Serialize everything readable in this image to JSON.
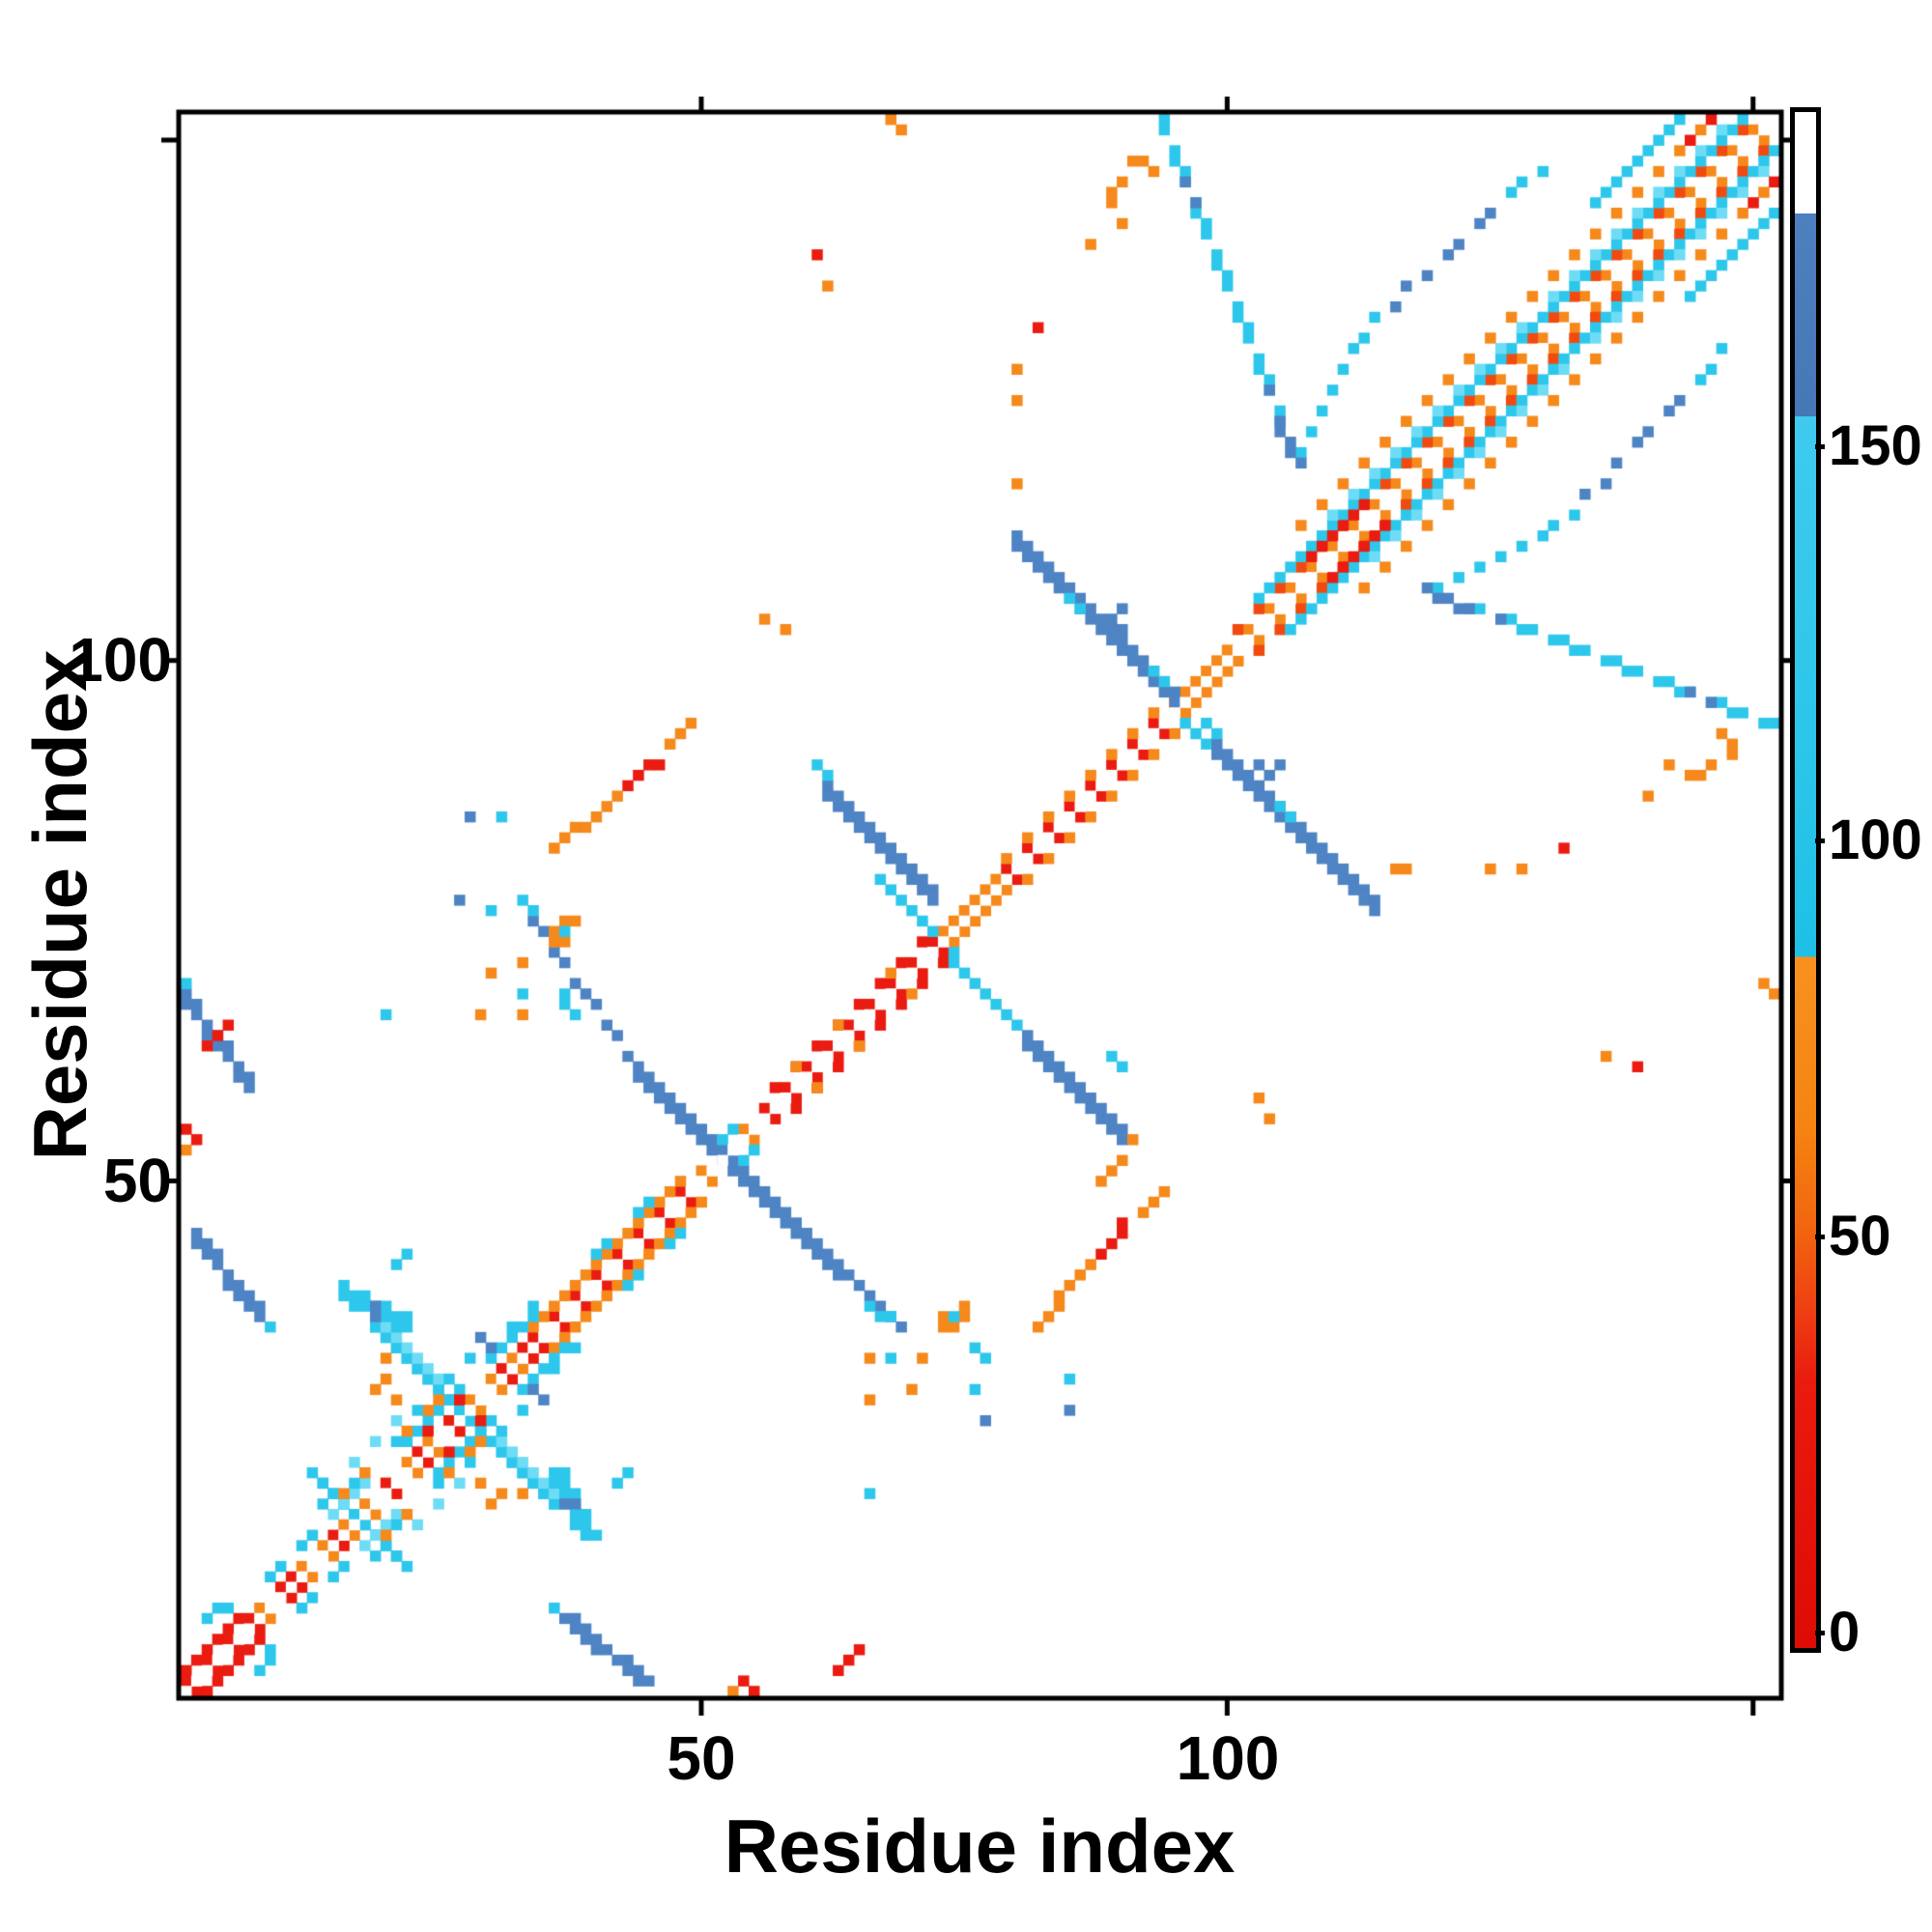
{
  "chart_data": {
    "type": "heatmap",
    "title": "",
    "xlabel": "Residue index",
    "ylabel": "Residue index",
    "n_residues": 152,
    "x_ticks": [
      {
        "v": 50,
        "label": "50"
      },
      {
        "v": 100,
        "label": "100"
      },
      {
        "v": 150,
        "label": ""
      }
    ],
    "y_ticks": [
      {
        "v": 50,
        "label": "50"
      },
      {
        "v": 100,
        "label": "100"
      },
      {
        "v": 150,
        "label": ""
      }
    ],
    "grid": false,
    "legend_position": "right-colorbar",
    "colorbar": {
      "vmin": -2,
      "vmax": 192,
      "ticks": [
        {
          "v": 0,
          "label": "0"
        },
        {
          "v": 50,
          "label": "50"
        },
        {
          "v": 100,
          "label": "100"
        },
        {
          "v": 150,
          "label": "150"
        }
      ],
      "segments": [
        {
          "stop": 0.0,
          "color": "#ffffff"
        },
        {
          "stop": 0.066,
          "color": "#ffffff"
        },
        {
          "stop": 0.066,
          "color": "#4d80bf"
        },
        {
          "stop": 0.198,
          "color": "#4677b6"
        },
        {
          "stop": 0.198,
          "color": "#3fcaee"
        },
        {
          "stop": 0.4,
          "color": "#2cc6ea"
        },
        {
          "stop": 0.55,
          "color": "#1fc0e6"
        },
        {
          "stop": 0.55,
          "color": "#f79120"
        },
        {
          "stop": 0.66,
          "color": "#f58411"
        },
        {
          "stop": 0.726,
          "color": "#f2660f"
        },
        {
          "stop": 0.78,
          "color": "#ee3f12"
        },
        {
          "stop": 0.827,
          "color": "#ea1a0e"
        },
        {
          "stop": 1.0,
          "color": "#dd0c04"
        }
      ]
    },
    "palette": {
      "red": "#ea1b10",
      "ror": "#f14a10",
      "org": "#f6891b",
      "cyn": "#2ec7ec",
      "cyn2": "#6fdcf5",
      "stl": "#4e84c4",
      "bg": "#ffffff"
    },
    "features": {
      "runs": [
        {
          "t": "d",
          "x": 1,
          "y": 2,
          "l": 7,
          "c": "red",
          "alt": 1
        },
        {
          "t": "d",
          "x": 1,
          "y": 3,
          "l": 6,
          "c": "red"
        },
        {
          "t": "d",
          "x": 8,
          "y": 9,
          "l": 12,
          "c": "org",
          "alt": 1
        },
        {
          "t": "d",
          "x": 20,
          "y": 21,
          "l": 14,
          "c": "org",
          "alt": 1
        },
        {
          "t": "d",
          "x": 34,
          "y": 35,
          "l": 16,
          "c": "red",
          "alt": 1
        },
        {
          "t": "d",
          "x": 34,
          "y": 36,
          "l": 15,
          "c": "org"
        },
        {
          "t": "d",
          "x": 50,
          "y": 51,
          "l": 6,
          "c": "org",
          "alt": 1
        },
        {
          "t": "d",
          "x": 56,
          "y": 57,
          "l": 17,
          "c": "red",
          "alt": 1
        },
        {
          "t": "d",
          "x": 57,
          "y": 59,
          "l": 15,
          "c": "red",
          "alt": 1
        },
        {
          "t": "d",
          "x": 73,
          "y": 74,
          "l": 6,
          "c": "org"
        },
        {
          "t": "d",
          "x": 79,
          "y": 80,
          "l": 17,
          "c": "red",
          "alt": 1
        },
        {
          "t": "d",
          "x": 79,
          "y": 81,
          "l": 16,
          "c": "org",
          "alt": 1
        },
        {
          "t": "d",
          "x": 95,
          "y": 96,
          "l": 6,
          "c": "org"
        },
        {
          "t": "d",
          "x": 100,
          "y": 101,
          "l": 52,
          "c": "org",
          "alt": 1
        },
        {
          "t": "d",
          "x": 101,
          "y": 103,
          "l": 50,
          "c": "ror",
          "alt": 1
        },
        {
          "t": "d",
          "x": 103,
          "y": 106,
          "l": 47,
          "c": "cyn"
        },
        {
          "t": "d",
          "x": 108,
          "y": 110,
          "l": 6,
          "c": "red"
        },
        {
          "t": "d",
          "x": 107,
          "y": 113,
          "l": 40,
          "c": "org",
          "alt": 1
        },
        {
          "t": "d",
          "x": 110,
          "y": 114,
          "l": 20,
          "c": "cyn2",
          "alt": 1
        },
        {
          "t": "d",
          "x": 131,
          "y": 135,
          "l": 18,
          "c": "cyn2",
          "alt": 1
        },
        {
          "t": "d",
          "x": 135,
          "y": 144,
          "l": 9,
          "c": "cyn"
        },
        {
          "t": "a",
          "x": 34,
          "y": 75,
          "l": 10,
          "c": "stl",
          "s": 1.4,
          "nm": 1
        },
        {
          "t": "a",
          "x": 44,
          "y": 61,
          "l": 12,
          "c": "stl",
          "w": 2,
          "nm": 1
        },
        {
          "t": "a",
          "x": 56,
          "y": 49,
          "l": 8,
          "c": "stl",
          "w": 2,
          "nm": 1
        },
        {
          "t": "a",
          "x": 64,
          "y": 41,
          "l": 6,
          "c": "stl",
          "nm": 1
        },
        {
          "t": "a",
          "x": 62,
          "y": 88,
          "l": 11,
          "c": "stl",
          "w": 2,
          "nm": 1
        },
        {
          "t": "a",
          "x": 67,
          "y": 79,
          "l": 5,
          "c": "cyn",
          "nm": 1
        },
        {
          "t": "a",
          "x": 74,
          "y": 71,
          "l": 7,
          "c": "cyn",
          "nm": 1
        },
        {
          "t": "a",
          "x": 81,
          "y": 64,
          "l": 10,
          "c": "stl",
          "w": 2,
          "nm": 1
        },
        {
          "t": "a",
          "x": 80,
          "y": 112,
          "l": 16,
          "c": "stl",
          "w": 2,
          "nm": 1
        },
        {
          "t": "a",
          "x": 96,
          "y": 94,
          "l": 3,
          "c": "cyn",
          "nm": 1
        },
        {
          "t": "a",
          "x": 99,
          "y": 92,
          "l": 16,
          "c": "stl",
          "w": 2,
          "nm": 1
        },
        {
          "t": "a",
          "x": 94,
          "y": 152,
          "l": 12,
          "c": "cyn",
          "s": 2.5,
          "w": 2
        },
        {
          "t": "d",
          "x": 107,
          "y": 120,
          "l": 8,
          "c": "cyn",
          "s": 1.9
        },
        {
          "t": "a",
          "x": 2,
          "y": 45,
          "l": 7,
          "c": "stl",
          "s": 1.2,
          "w": 2
        },
        {
          "t": "a",
          "x": 1,
          "y": 68,
          "l": 7,
          "c": "stl",
          "s": 1.35,
          "w": 2,
          "nm": 1
        },
        {
          "t": "a",
          "x": 13,
          "y": 22,
          "l": 9,
          "c": "cyn"
        },
        {
          "t": "a",
          "x": 19,
          "y": 36,
          "l": 18,
          "c": "cyn"
        },
        {
          "t": "a",
          "x": 20,
          "y": 36,
          "l": 6,
          "c": "cyn2"
        },
        {
          "t": "a",
          "x": 16,
          "y": 40,
          "l": 7,
          "c": "cyn",
          "s": 0.5,
          "w": 2
        },
        {
          "t": "d",
          "x": 22,
          "y": 25,
          "l": 6,
          "c": "cyn"
        },
        {
          "t": "d",
          "x": 15,
          "y": 18,
          "l": 4,
          "c": "cyn2"
        },
        {
          "t": "d",
          "x": 30,
          "y": 33,
          "l": 5,
          "c": "cyn"
        },
        {
          "t": "d",
          "x": 17,
          "y": 23,
          "l": 5,
          "c": "cyn2",
          "alt": 1
        }
      ],
      "cells": {
        "red": [
          [
            20,
            21
          ],
          [
            23,
            24
          ],
          [
            26,
            27
          ],
          [
            24,
            26
          ],
          [
            27,
            29
          ],
          [
            31,
            32
          ],
          [
            33,
            34
          ],
          [
            10,
            11
          ],
          [
            11,
            12
          ],
          [
            15,
            16
          ],
          [
            3,
            63
          ],
          [
            4,
            64
          ],
          [
            5,
            65
          ],
          [
            1,
            55
          ],
          [
            2,
            54
          ],
          [
            61,
            139
          ],
          [
            82,
            132
          ],
          [
            43,
            88
          ],
          [
            44,
            89
          ],
          [
            45,
            90
          ],
          [
            46,
            90
          ],
          [
            144,
            150
          ],
          [
            146,
            152
          ]
        ],
        "org": [
          [
            1,
            53
          ],
          [
            20,
            33
          ],
          [
            20,
            31
          ],
          [
            19,
            30
          ],
          [
            21,
            29
          ],
          [
            22,
            26
          ],
          [
            25,
            29
          ],
          [
            18,
            22
          ],
          [
            16,
            20
          ],
          [
            24,
            28
          ],
          [
            30,
            70
          ],
          [
            33,
            71
          ],
          [
            66,
            33
          ],
          [
            66,
            29
          ],
          [
            103,
            58
          ],
          [
            104,
            56
          ],
          [
            125,
            80
          ],
          [
            128,
            80
          ],
          [
            140,
            87
          ],
          [
            144,
            89
          ],
          [
            145,
            89
          ],
          [
            147,
            93
          ],
          [
            148,
            92
          ],
          [
            148,
            91
          ],
          [
            146,
            90
          ],
          [
            62,
            136
          ],
          [
            68,
            152
          ],
          [
            69,
            151
          ],
          [
            36,
            73
          ],
          [
            36,
            74
          ],
          [
            37,
            73
          ],
          [
            37,
            75
          ],
          [
            38,
            75
          ],
          [
            90,
            142
          ],
          [
            59,
            61
          ],
          [
            63,
            65
          ],
          [
            68,
            70
          ],
          [
            36,
            82
          ],
          [
            37,
            83
          ],
          [
            38,
            84
          ],
          [
            39,
            84
          ],
          [
            40,
            85
          ],
          [
            41,
            86
          ],
          [
            42,
            87
          ],
          [
            47,
            92
          ],
          [
            48,
            93
          ],
          [
            49,
            94
          ],
          [
            117,
            80
          ]
        ],
        "cyn": [
          [
            3,
            8
          ],
          [
            4,
            9
          ],
          [
            5,
            9
          ],
          [
            9,
            12
          ],
          [
            13,
            16
          ],
          [
            40,
            43
          ],
          [
            41,
            44
          ],
          [
            45,
            48
          ],
          [
            44,
            47
          ],
          [
            52,
            54
          ],
          [
            53,
            55
          ],
          [
            72,
            74
          ],
          [
            68,
            33
          ],
          [
            76,
            30
          ],
          [
            21,
            42
          ],
          [
            22,
            43
          ],
          [
            66,
            20
          ],
          [
            14,
            19
          ],
          [
            17,
            21
          ],
          [
            21,
            25
          ],
          [
            23,
            28
          ],
          [
            28,
            33
          ],
          [
            32,
            36
          ],
          [
            26,
            31
          ],
          [
            12,
            15
          ],
          [
            10,
            13
          ],
          [
            34,
            38
          ],
          [
            37,
            74
          ],
          [
            33,
            77
          ],
          [
            34,
            76
          ],
          [
            66,
            38
          ],
          [
            67,
            37
          ],
          [
            68,
            37
          ],
          [
            61,
            90
          ],
          [
            62,
            89
          ],
          [
            9,
            36
          ],
          [
            85,
            31
          ],
          [
            93,
            99
          ],
          [
            94,
            98
          ],
          [
            85,
            106
          ],
          [
            86,
            105
          ],
          [
            127,
            145
          ],
          [
            128,
            146
          ],
          [
            130,
            147
          ]
        ],
        "stl": [
          [
            19,
            38
          ],
          [
            19,
            37
          ],
          [
            29,
            35
          ],
          [
            30,
            34
          ],
          [
            89,
            104
          ],
          [
            90,
            105
          ],
          [
            90,
            103
          ],
          [
            77,
            27
          ],
          [
            85,
            28
          ],
          [
            96,
            146
          ],
          [
            97,
            144
          ],
          [
            104,
            126
          ],
          [
            105,
            123
          ],
          [
            105,
            122
          ],
          [
            106,
            121
          ],
          [
            106,
            120
          ],
          [
            107,
            119
          ],
          [
            116,
            134
          ],
          [
            117,
            136
          ],
          [
            119,
            137
          ],
          [
            121,
            139
          ],
          [
            122,
            140
          ],
          [
            124,
            142
          ],
          [
            125,
            143
          ]
        ]
      },
      "cells_nomirror": {
        "org": [
          [
            88,
            50
          ],
          [
            89,
            51
          ],
          [
            90,
            52
          ],
          [
            91,
            54
          ],
          [
            116,
            80
          ]
        ],
        "cyn": [
          [
            1,
            69
          ]
        ]
      }
    }
  },
  "labels": {
    "x_tick_50": "50",
    "x_tick_100": "100",
    "y_tick_50": "50",
    "y_tick_100": "100",
    "cb_0": "0",
    "cb_50": "50",
    "cb_100": "100",
    "cb_150": "150",
    "x_title": "Residue index",
    "y_title": "Residue index"
  }
}
